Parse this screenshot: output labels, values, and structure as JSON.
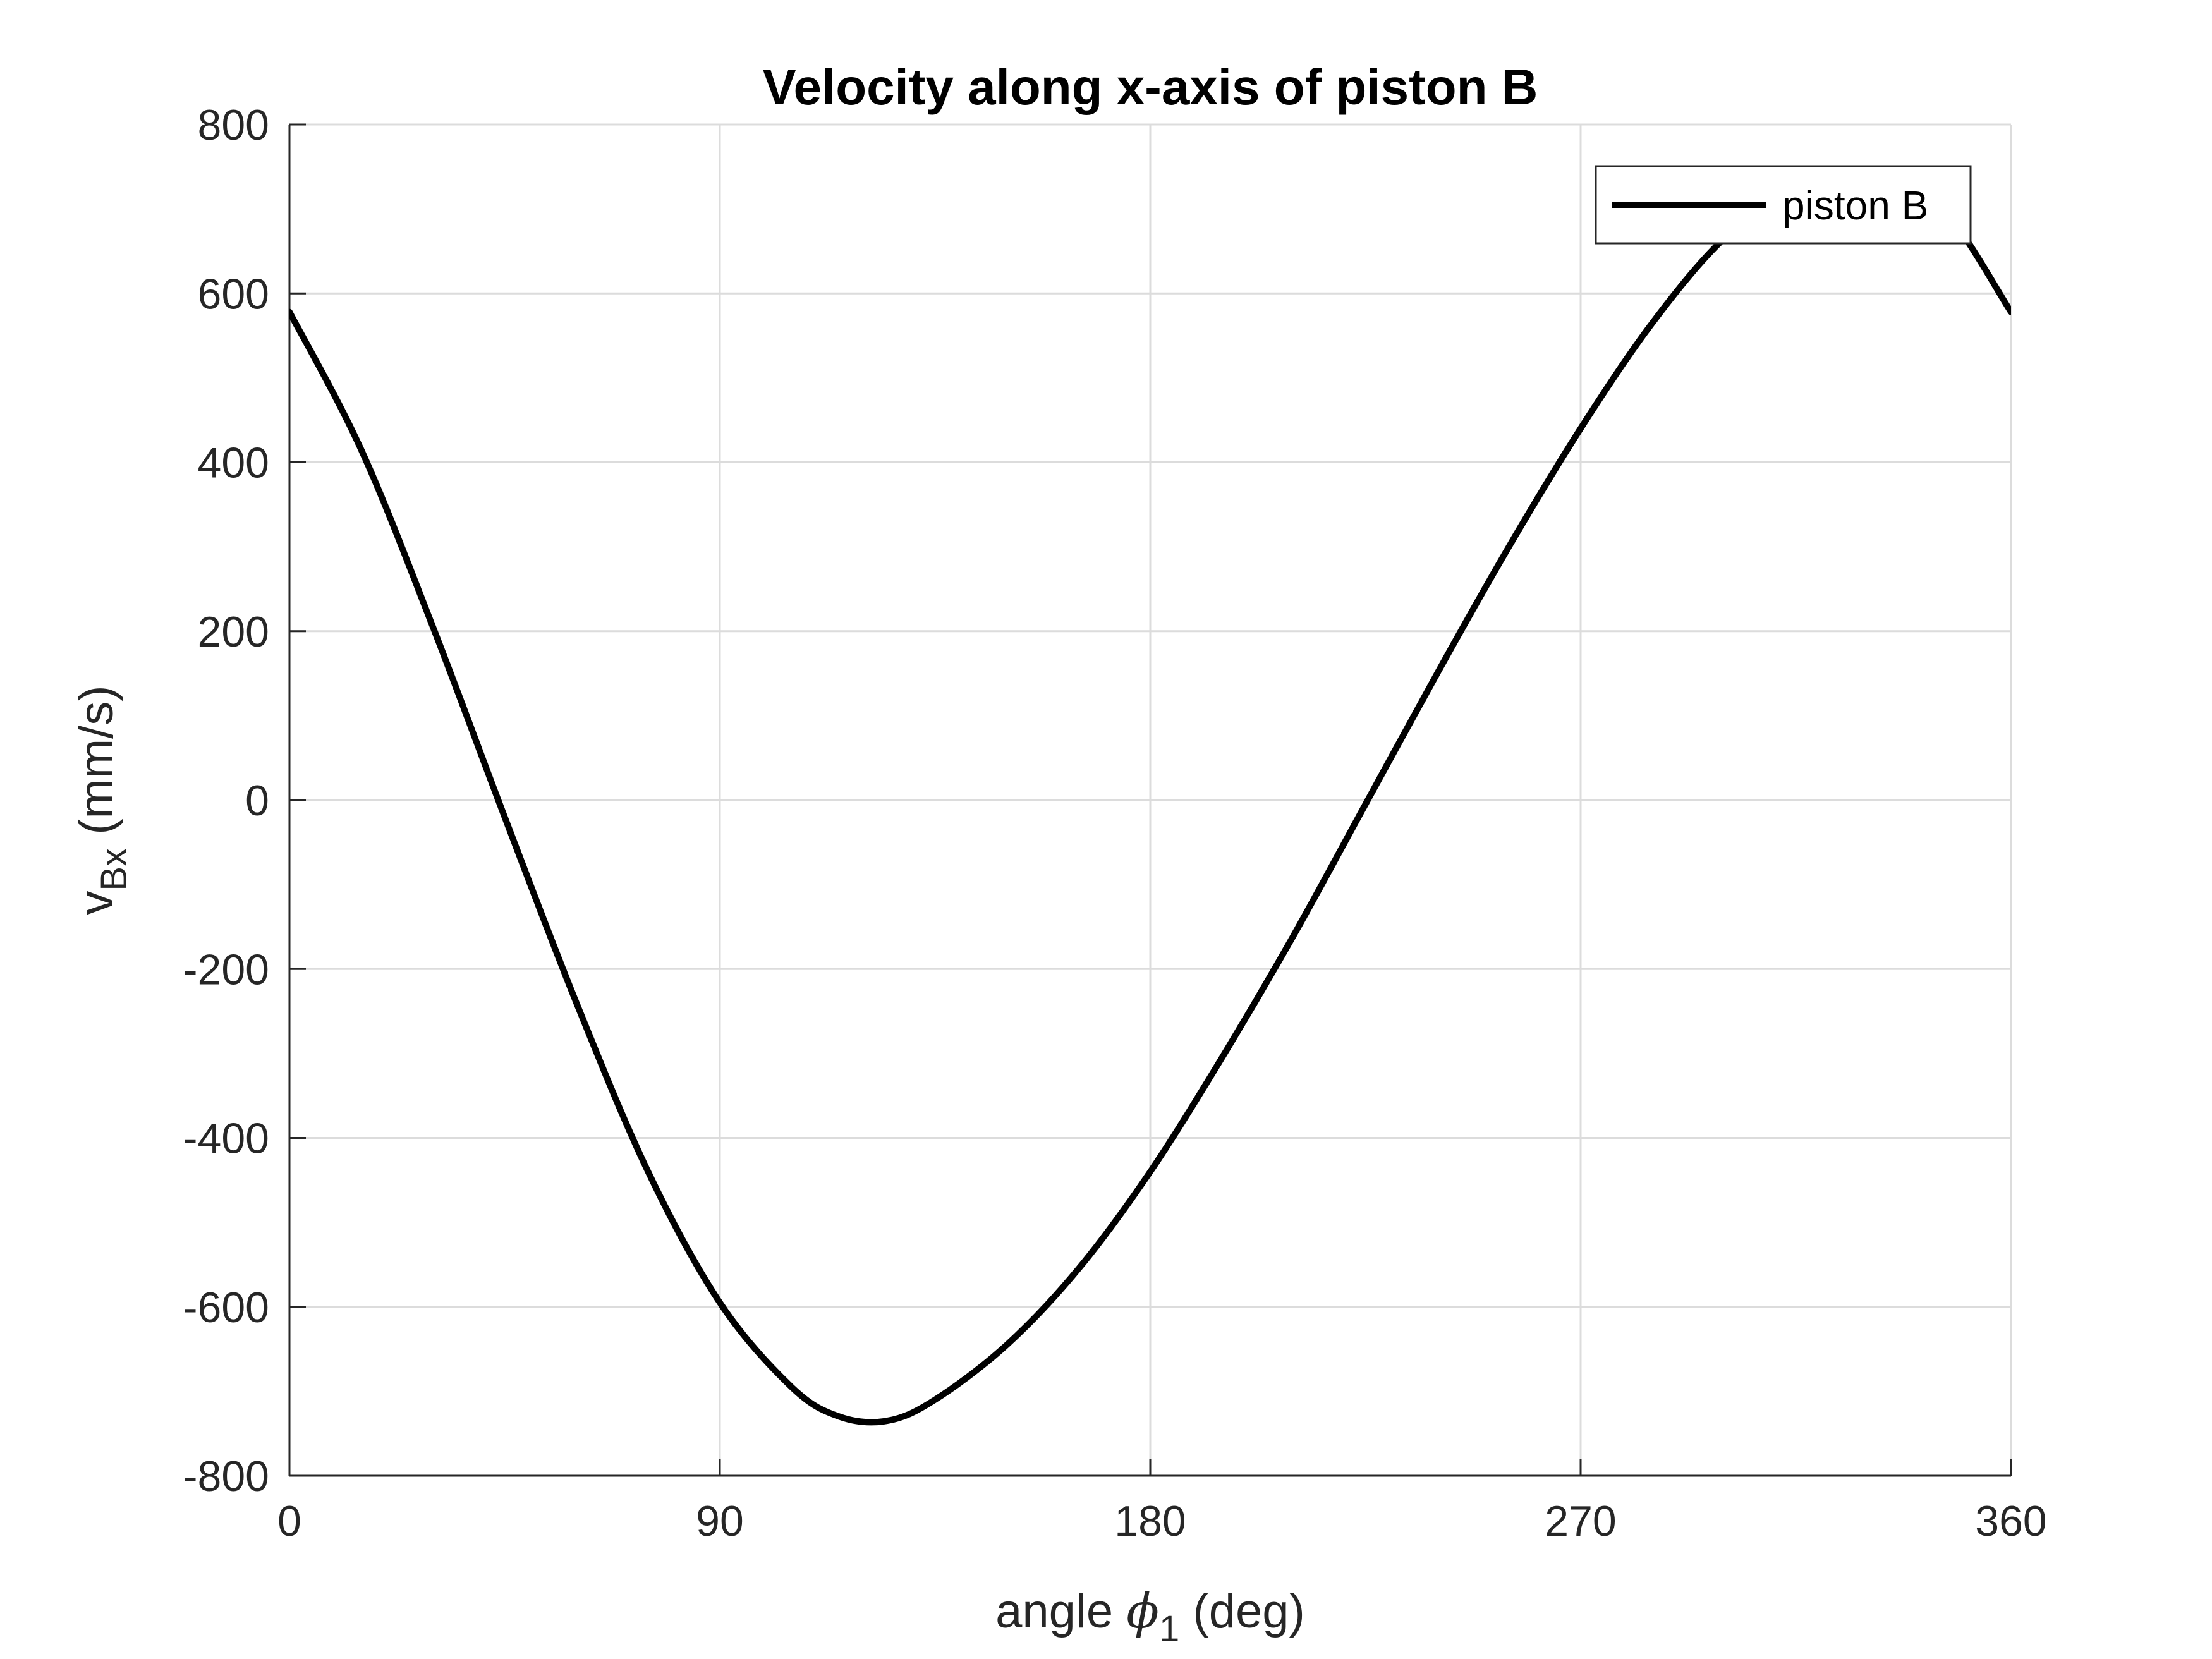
{
  "chart_data": {
    "type": "line",
    "title": "Velocity along x-axis of piston B",
    "xlabel": {
      "prefix": "angle ",
      "symbol": "ϕ",
      "subscript": "1",
      "suffix": " (deg)"
    },
    "ylabel": {
      "main": "v",
      "subscript": "Bx",
      "suffix": " (mm/s)"
    },
    "xlim": [
      0,
      360
    ],
    "ylim": [
      -800,
      800
    ],
    "xticks": [
      0,
      90,
      180,
      270,
      360
    ],
    "yticks": [
      -800,
      -600,
      -400,
      -200,
      0,
      200,
      400,
      600,
      800
    ],
    "grid": true,
    "legend": {
      "position": "top-right",
      "entries": [
        "piston B"
      ]
    },
    "series": [
      {
        "name": "piston B",
        "color": "#000000",
        "x": [
          0,
          15,
          30,
          45,
          60,
          75,
          90,
          105,
          115,
          125,
          135,
          150,
          165,
          180,
          195,
          210,
          225,
          240,
          255,
          270,
          285,
          300,
          315,
          330,
          345,
          360
        ],
        "y": [
          578,
          415,
          205,
          -20,
          -240,
          -440,
          -595,
          -695,
          -730,
          -735,
          -710,
          -645,
          -555,
          -440,
          -305,
          -160,
          -5,
          150,
          300,
          440,
          565,
          665,
          725,
          740,
          705,
          578
        ]
      }
    ]
  }
}
